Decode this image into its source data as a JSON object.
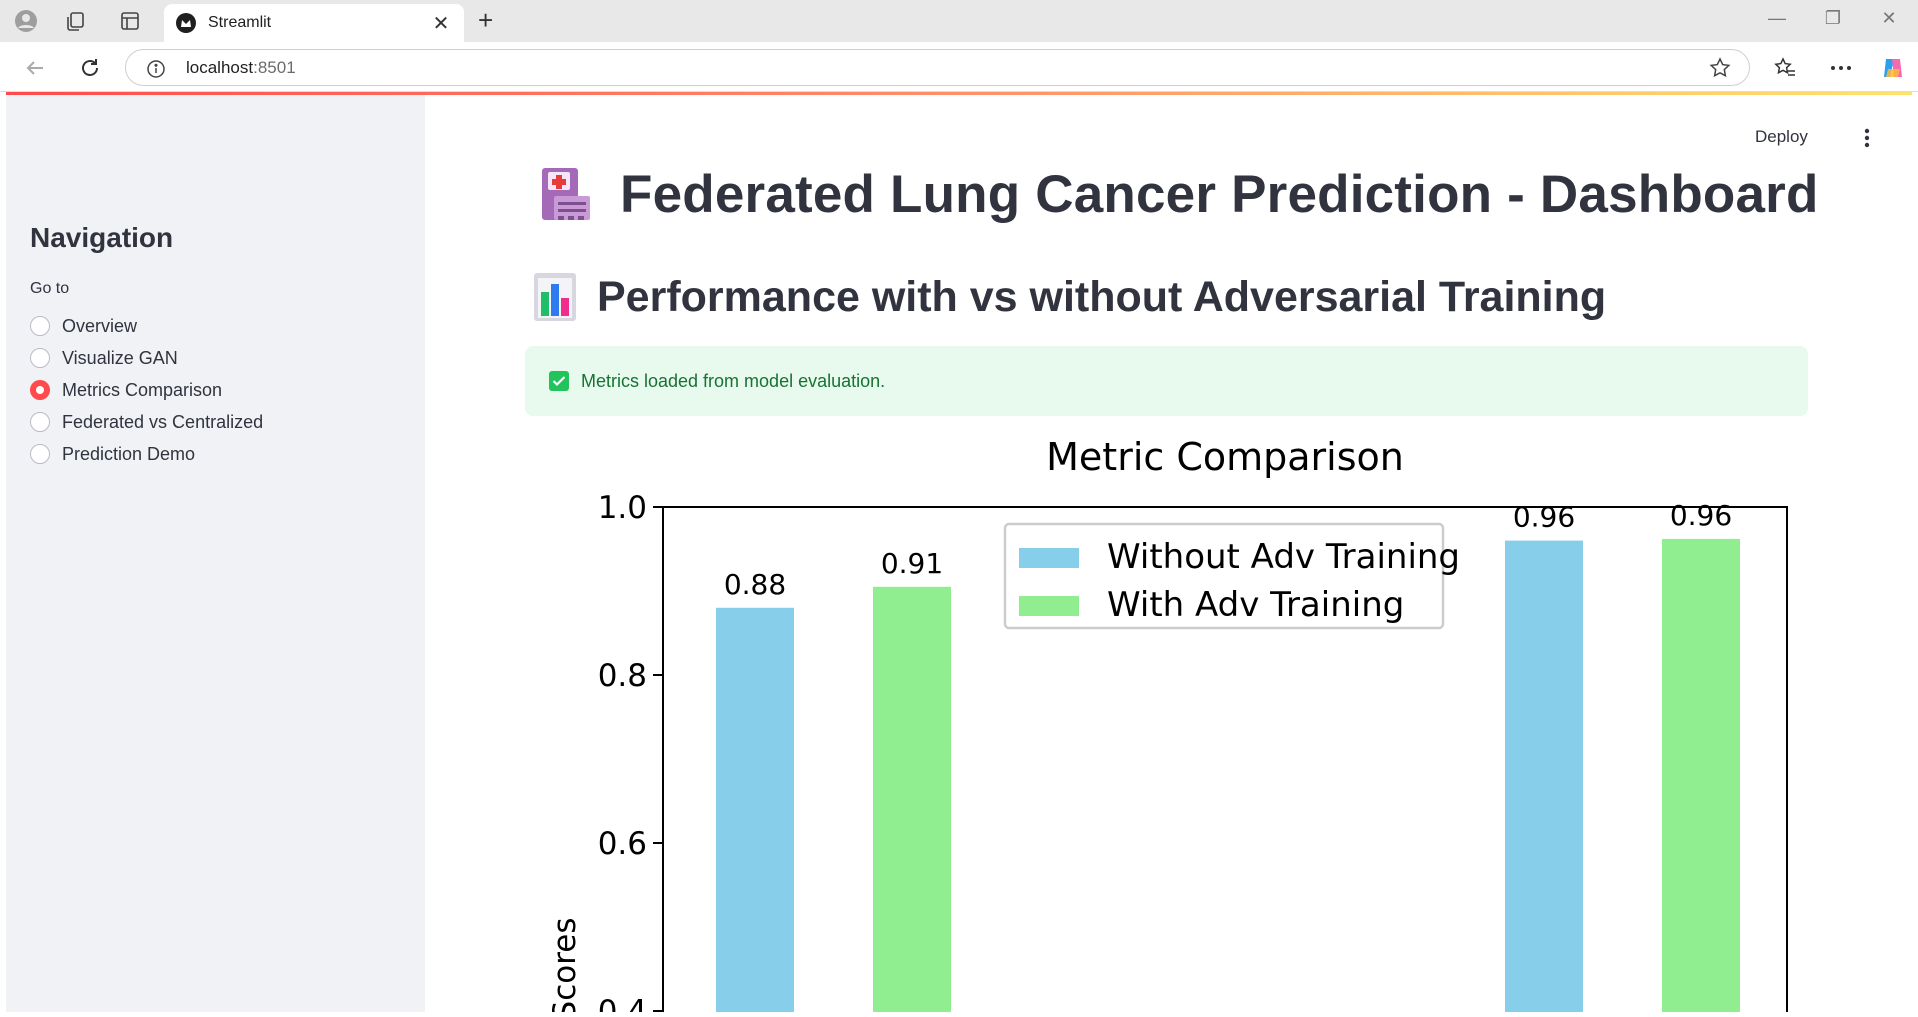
{
  "browser": {
    "tab_title": "Streamlit",
    "url_host": "localhost",
    "url_port": ":8501"
  },
  "sidebar": {
    "title": "Navigation",
    "radio_label": "Go to",
    "options": [
      "Overview",
      "Visualize GAN",
      "Metrics Comparison",
      "Federated vs Centralized",
      "Prediction Demo"
    ],
    "selected": "Metrics Comparison"
  },
  "header": {
    "deploy_label": "Deploy"
  },
  "main": {
    "title": "Federated Lung Cancer Prediction - Dashboard",
    "subtitle": "Performance with vs without Adversarial Training",
    "alert": "Metrics loaded from model evaluation."
  },
  "colors": {
    "accent": "#ff4b4b",
    "without_adv": "#87ceeb",
    "with_adv": "#90ee90"
  },
  "chart_data": {
    "type": "bar",
    "title": "Metric Comparison",
    "ylabel": "Scores",
    "ylim": [
      0,
      1.0
    ],
    "yticks": [
      "0.4",
      "0.6",
      "0.8",
      "1.0"
    ],
    "legend_position": "upper center",
    "series": [
      {
        "name": "Without Adv Training",
        "values": [
          0.88,
          0.96
        ],
        "labels": [
          "0.88",
          "0.96"
        ]
      },
      {
        "name": "With Adv Training",
        "values": [
          0.905,
          0.962
        ],
        "labels": [
          "0.91",
          "0.96"
        ]
      }
    ]
  }
}
